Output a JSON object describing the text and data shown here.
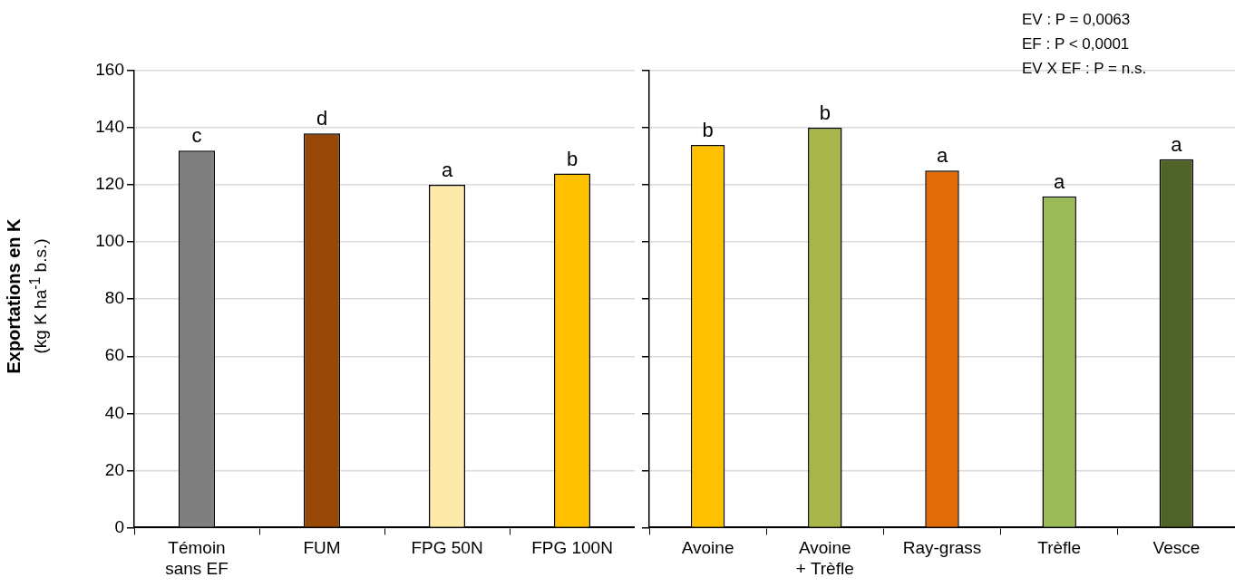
{
  "chart_data": [
    {
      "type": "bar",
      "ylabel": "Exportations en K\n(kg K ha$^{-1}$ b.s.)",
      "categories": [
        "Témoin sans EF",
        "FUM",
        "FPG 50N",
        "FPG 100N"
      ],
      "values": [
        132,
        138,
        120,
        124
      ],
      "colors": [
        "#7f7f7f",
        "#974706",
        "#fde9a8",
        "#ffc000"
      ],
      "value_labels": [
        "c",
        "d",
        "a",
        "b"
      ],
      "ylim": [
        0,
        160
      ],
      "yticks": [
        0,
        20,
        40,
        60,
        80,
        100,
        120,
        140,
        160
      ],
      "grid": "y",
      "legend": false
    },
    {
      "type": "bar",
      "categories": [
        "Avoine",
        "Avoine + Trèfle",
        "Ray-grass",
        "Trèfle",
        "Vesce"
      ],
      "values": [
        134,
        140,
        125,
        116,
        129
      ],
      "colors": [
        "#ffc000",
        "#a8b548",
        "#e36c0a",
        "#9bbb59",
        "#4f6228"
      ],
      "value_labels": [
        "b",
        "b",
        "a",
        "a",
        "a"
      ],
      "ylim": [
        0,
        160
      ],
      "yticks": [
        0,
        20,
        40,
        60,
        80,
        100,
        120,
        140,
        160
      ],
      "tick_labels": "x",
      "grid": "y",
      "legend": false,
      "annotations": [
        "EV : P = 0,0063",
        "EF : P < 0,0001",
        "EV X EF : P = n.s."
      ]
    }
  ]
}
